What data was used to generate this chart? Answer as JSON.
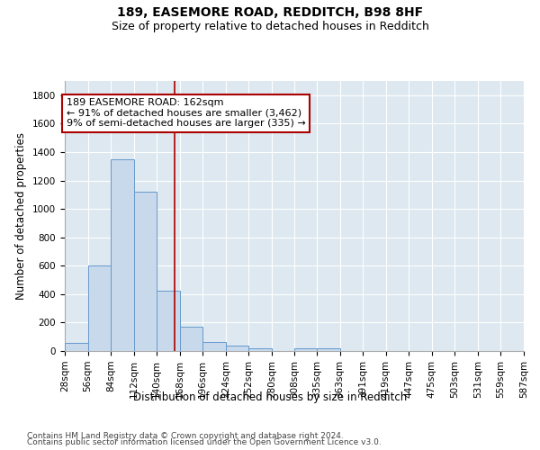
{
  "title1": "189, EASEMORE ROAD, REDDITCH, B98 8HF",
  "title2": "Size of property relative to detached houses in Redditch",
  "xlabel": "Distribution of detached houses by size in Redditch",
  "ylabel": "Number of detached properties",
  "bar_color": "#c9d9ec",
  "bar_edge_color": "#6699cc",
  "background_color": "#dde8f0",
  "grid_color": "#ffffff",
  "vline_color": "#aa0000",
  "vline_x": 162,
  "annotation_line1": "189 EASEMORE ROAD: 162sqm",
  "annotation_line2": "← 91% of detached houses are smaller (3,462)",
  "annotation_line3": "9% of semi-detached houses are larger (335) →",
  "annotation_box_color": "#ffffff",
  "annotation_box_edge": "#aa0000",
  "bins": [
    28,
    56,
    84,
    112,
    140,
    168,
    196,
    224,
    252,
    280,
    308,
    335,
    363,
    391,
    419,
    447,
    475,
    503,
    531,
    559,
    587
  ],
  "counts": [
    60,
    600,
    1350,
    1120,
    425,
    170,
    65,
    38,
    20,
    0,
    20,
    20,
    0,
    0,
    0,
    0,
    0,
    0,
    0,
    0
  ],
  "ylim": [
    0,
    1900
  ],
  "yticks": [
    0,
    200,
    400,
    600,
    800,
    1000,
    1200,
    1400,
    1600,
    1800
  ],
  "xtick_labels": [
    "28sqm",
    "56sqm",
    "84sqm",
    "112sqm",
    "140sqm",
    "168sqm",
    "196sqm",
    "224sqm",
    "252sqm",
    "280sqm",
    "308sqm",
    "335sqm",
    "363sqm",
    "391sqm",
    "419sqm",
    "447sqm",
    "475sqm",
    "503sqm",
    "531sqm",
    "559sqm",
    "587sqm"
  ],
  "footnote1": "Contains HM Land Registry data © Crown copyright and database right 2024.",
  "footnote2": "Contains public sector information licensed under the Open Government Licence v3.0.",
  "title_fontsize": 10,
  "subtitle_fontsize": 9,
  "axis_label_fontsize": 8.5,
  "tick_fontsize": 7.5,
  "annotation_fontsize": 8,
  "footnote_fontsize": 6.5
}
